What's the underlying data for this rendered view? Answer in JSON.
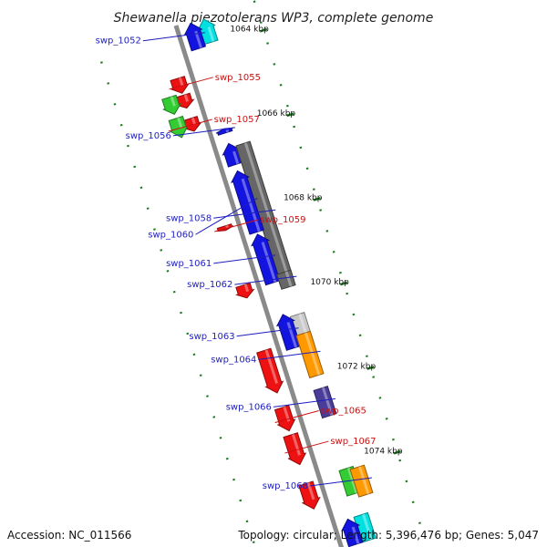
{
  "title": "Shewanella piezotolerans WP3, complete genome",
  "colors": {
    "backbone": "#8a8a8a",
    "dots": "#1e7b1e",
    "label_forward": "#1d1dbf",
    "label_reverse": "#cc1111",
    "leader": "#333333"
  },
  "scale": {
    "start_bp": 1063300,
    "end_bp": 1075700
  },
  "ticks": [
    {
      "bp": 1064000,
      "label": "1064 kbp"
    },
    {
      "bp": 1066000,
      "label": "1066 kbp"
    },
    {
      "bp": 1068000,
      "label": "1068 kbp"
    },
    {
      "bp": 1070000,
      "label": "1070 kbp"
    },
    {
      "bp": 1072000,
      "label": "1072 kbp"
    },
    {
      "bp": 1074000,
      "label": "1074 kbp"
    }
  ],
  "genes": [
    {
      "start": 1063350,
      "end": 1063900,
      "strand": 1,
      "lane": 2,
      "color": "#00e0e0",
      "label": ""
    },
    {
      "start": 1063350,
      "end": 1063950,
      "strand": 1,
      "lane": 1,
      "color": "#1414e0",
      "label": "swp_1052"
    },
    {
      "start": 1064450,
      "end": 1064800,
      "strand": -1,
      "lane": 1,
      "color": "#ee1111",
      "label": "swp_1055"
    },
    {
      "start": 1064850,
      "end": 1065150,
      "strand": -1,
      "lane": 1,
      "color": "#ee1111",
      "label": ""
    },
    {
      "start": 1064800,
      "end": 1065200,
      "strand": -1,
      "lane": 2,
      "color": "#33cc33",
      "label": ""
    },
    {
      "start": 1065400,
      "end": 1065700,
      "strand": -1,
      "lane": 1,
      "color": "#ee1111",
      "label": ""
    },
    {
      "start": 1065300,
      "end": 1065750,
      "strand": -1,
      "lane": 2,
      "color": "#33cc33",
      "label": "swp_1057"
    },
    {
      "start": 1065850,
      "end": 1065950,
      "strand": 1,
      "lane": 1,
      "color": "#1414e0",
      "label": "swp_1056"
    },
    {
      "start": 1066200,
      "end": 1066700,
      "strand": 1,
      "lane": 1,
      "color": "#1414e0",
      "label": ""
    },
    {
      "start": 1066300,
      "end": 1069600,
      "strand": 0,
      "lane": 2,
      "color": "#666666",
      "label": "swp_1058"
    },
    {
      "start": 1066850,
      "end": 1068300,
      "strand": 1,
      "lane": 1,
      "color": "#1414e0",
      "label": "swp_1060"
    },
    {
      "start": 1067950,
      "end": 1068050,
      "strand": -1,
      "lane": 1,
      "color": "#ee1111",
      "label": "swp_1059"
    },
    {
      "start": 1068350,
      "end": 1069500,
      "strand": 1,
      "lane": 1,
      "color": "#1414e0",
      "label": "swp_1061"
    },
    {
      "start": 1069350,
      "end": 1069700,
      "strand": 0,
      "lane": 2,
      "color": "#666666",
      "label": "swp_1062"
    },
    {
      "start": 1069350,
      "end": 1069650,
      "strand": -1,
      "lane": 1,
      "color": "#ee1111",
      "label": ""
    },
    {
      "start": 1070350,
      "end": 1071100,
      "strand": 0,
      "lane": 2,
      "color": "#c8c8c8",
      "label": ""
    },
    {
      "start": 1070250,
      "end": 1071050,
      "strand": 1,
      "lane": 1,
      "color": "#1414e0",
      "label": "swp_1063"
    },
    {
      "start": 1070900,
      "end": 1071900,
      "strand": -1,
      "lane": 1,
      "color": "#ee1111",
      "label": ""
    },
    {
      "start": 1070800,
      "end": 1071800,
      "strand": 0,
      "lane": 2,
      "color": "#ff9900",
      "label": "swp_1064"
    },
    {
      "start": 1072250,
      "end": 1072800,
      "strand": -1,
      "lane": 1,
      "color": "#ee1111",
      "label": "swp_1065"
    },
    {
      "start": 1072100,
      "end": 1072750,
      "strand": 0,
      "lane": 2,
      "color": "#4a3d99",
      "label": "swp_1066"
    },
    {
      "start": 1072900,
      "end": 1073600,
      "strand": -1,
      "lane": 1,
      "color": "#ee1111",
      "label": "swp_1067"
    },
    {
      "start": 1074050,
      "end": 1074650,
      "strand": -1,
      "lane": 1,
      "color": "#ee1111",
      "label": ""
    },
    {
      "start": 1074000,
      "end": 1074600,
      "strand": 0,
      "lane": 2,
      "color": "#33cc33",
      "label": ""
    },
    {
      "start": 1074050,
      "end": 1074700,
      "strand": 0,
      "lane": 3,
      "color": "#ff9900",
      "label": "swp_1068"
    },
    {
      "start": 1075100,
      "end": 1075700,
      "strand": 0,
      "lane": 2,
      "color": "#00e0e0",
      "label": ""
    },
    {
      "start": 1075100,
      "end": 1075700,
      "strand": 1,
      "lane": 1,
      "color": "#1414e0",
      "label": ""
    }
  ],
  "footer": {
    "accession": "Accession: NC_011566",
    "summary": "Topology: circular; Length: 5,396,476 bp; Genes: 5,047"
  }
}
